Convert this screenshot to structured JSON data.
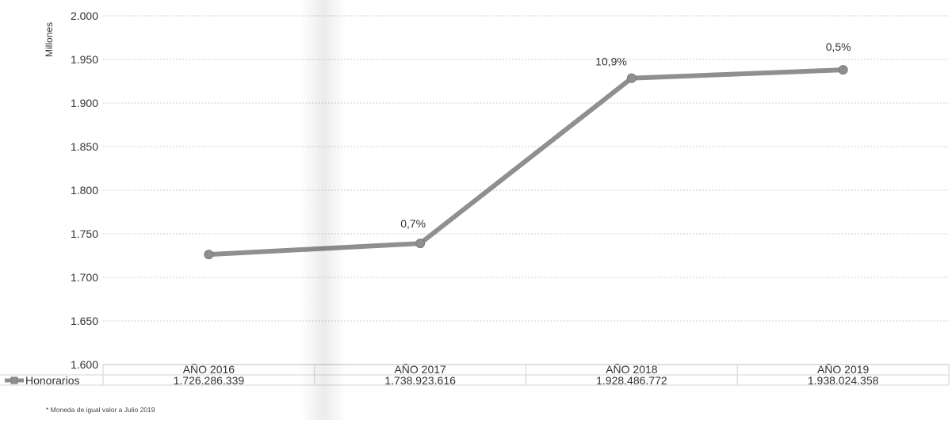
{
  "chart_data": {
    "type": "line",
    "title": "",
    "xlabel": "",
    "ylabel": "Millones",
    "ylim": [
      1600,
      2000
    ],
    "yticks": [
      1600,
      1650,
      1700,
      1750,
      1800,
      1850,
      1900,
      1950,
      2000
    ],
    "ytick_labels": [
      "1.600",
      "1.650",
      "1.700",
      "1.750",
      "1.800",
      "1.850",
      "1.900",
      "1.950",
      "2.000"
    ],
    "categories": [
      "AÑO 2016",
      "AÑO 2017",
      "AÑO 2018",
      "AÑO 2019"
    ],
    "series": [
      {
        "name": "Honorarios",
        "values": [
          1726.286339,
          1738.923616,
          1928.486772,
          1938.024358
        ],
        "table_labels": [
          "1.726.286.339",
          "1.738.923.616",
          "1.928.486.772",
          "1.938.024.358"
        ],
        "color": "#8f8f8f"
      }
    ],
    "annotations": [
      {
        "category": "AÑO 2017",
        "text": "0,7%"
      },
      {
        "category": "AÑO 2018",
        "text": "10,9%"
      },
      {
        "category": "AÑO 2019",
        "text": "0,5%"
      }
    ],
    "grid": true,
    "legend": "data-table-left"
  },
  "footnote": "* Moneda de igual valor a Julio 2019"
}
